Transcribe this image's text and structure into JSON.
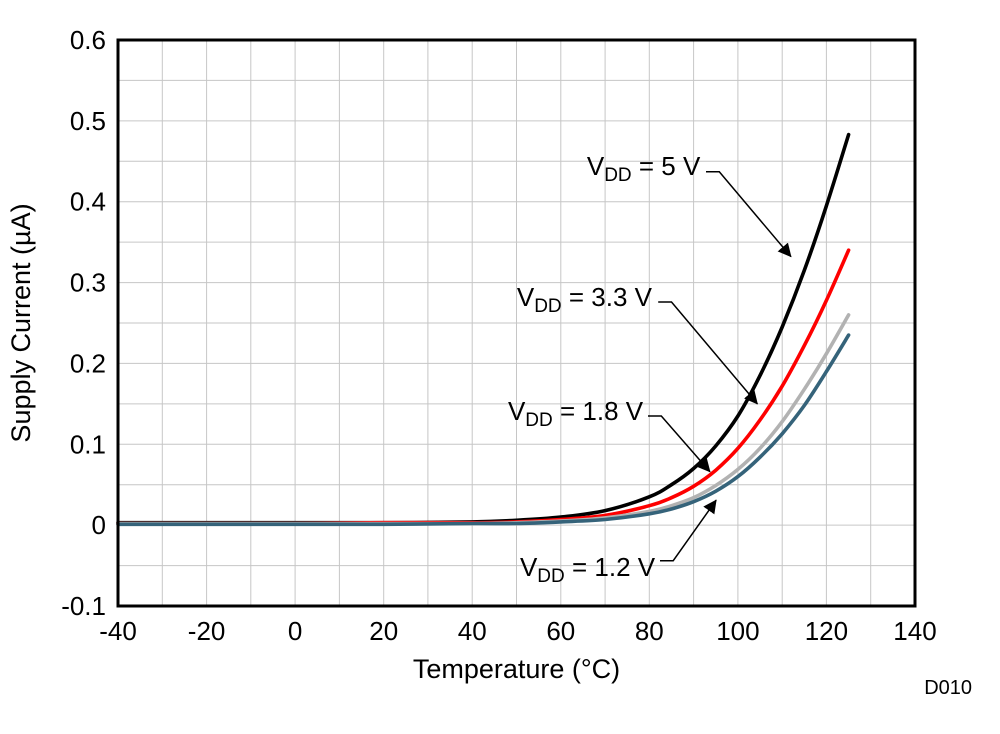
{
  "chart_data": {
    "type": "line",
    "title": "",
    "xlabel": "Temperature (°C)",
    "ylabel": "Supply Current (µA)",
    "figure_code": "D010",
    "figure_code_color": "#8ea2b4",
    "xlim": [
      -40,
      140
    ],
    "ylim": [
      -0.1,
      0.6
    ],
    "xticks": [
      "-40",
      "-20",
      "0",
      "20",
      "40",
      "60",
      "80",
      "100",
      "120",
      "140"
    ],
    "yticks": [
      "-0.1",
      "0",
      "0.1",
      "0.2",
      "0.3",
      "0.4",
      "0.5",
      "0.6"
    ],
    "minor_grid_step_x": 10,
    "minor_grid_step_y": 0.05,
    "grid_color": "#c6c6c6",
    "border_color": "#000000",
    "x": [
      -40,
      -20,
      0,
      20,
      40,
      50,
      60,
      70,
      80,
      85,
      90,
      95,
      100,
      105,
      110,
      115,
      120,
      125
    ],
    "series": [
      {
        "name": "VDD = 5 V",
        "color": "#000000",
        "values": [
          0.003,
          0.003,
          0.003,
          0.003,
          0.004,
          0.006,
          0.01,
          0.018,
          0.035,
          0.05,
          0.07,
          0.098,
          0.135,
          0.185,
          0.245,
          0.315,
          0.395,
          0.483
        ]
      },
      {
        "name": "VDD = 3.3 V",
        "color": "#fe0000",
        "values": [
          0.002,
          0.002,
          0.002,
          0.003,
          0.003,
          0.004,
          0.007,
          0.012,
          0.024,
          0.034,
          0.048,
          0.068,
          0.095,
          0.13,
          0.172,
          0.222,
          0.278,
          0.34
        ]
      },
      {
        "name": "VDD = 1.8 V",
        "color": "#b2b2b2",
        "values": [
          0.002,
          0.002,
          0.002,
          0.002,
          0.002,
          0.003,
          0.005,
          0.009,
          0.017,
          0.024,
          0.034,
          0.049,
          0.069,
          0.095,
          0.128,
          0.168,
          0.212,
          0.26
        ]
      },
      {
        "name": "VDD = 1.2 V",
        "color": "#35637a",
        "values": [
          0.001,
          0.001,
          0.001,
          0.001,
          0.002,
          0.002,
          0.004,
          0.007,
          0.014,
          0.02,
          0.029,
          0.042,
          0.06,
          0.084,
          0.113,
          0.148,
          0.19,
          0.235
        ]
      }
    ],
    "annotations": [
      {
        "pre": "V",
        "sub": "DD",
        "post": " = 5 V",
        "text_x": 91.5,
        "text_y": 0.444,
        "arrow": [
          [
            92.8,
            0.437
          ],
          [
            95.8,
            0.437
          ],
          [
            112.0,
            0.332
          ]
        ]
      },
      {
        "pre": "V",
        "sub": "DD",
        "post": " = 3.3 V",
        "text_x": 80.6,
        "text_y": 0.282,
        "arrow": [
          [
            82.0,
            0.276
          ],
          [
            85.0,
            0.276
          ],
          [
            104.4,
            0.15
          ]
        ]
      },
      {
        "pre": "V",
        "sub": "DD",
        "post": " = 1.8 V",
        "text_x": 78.6,
        "text_y": 0.141,
        "arrow": [
          [
            79.7,
            0.135
          ],
          [
            82.7,
            0.135
          ],
          [
            93.7,
            0.066
          ]
        ]
      },
      {
        "pre": "V",
        "sub": "DD",
        "post": " = 1.2 V",
        "text_x": 81.3,
        "text_y": -0.052,
        "arrow": [
          [
            82.4,
            -0.044
          ],
          [
            85.4,
            -0.044
          ],
          [
            95.1,
            0.031
          ]
        ]
      }
    ]
  }
}
